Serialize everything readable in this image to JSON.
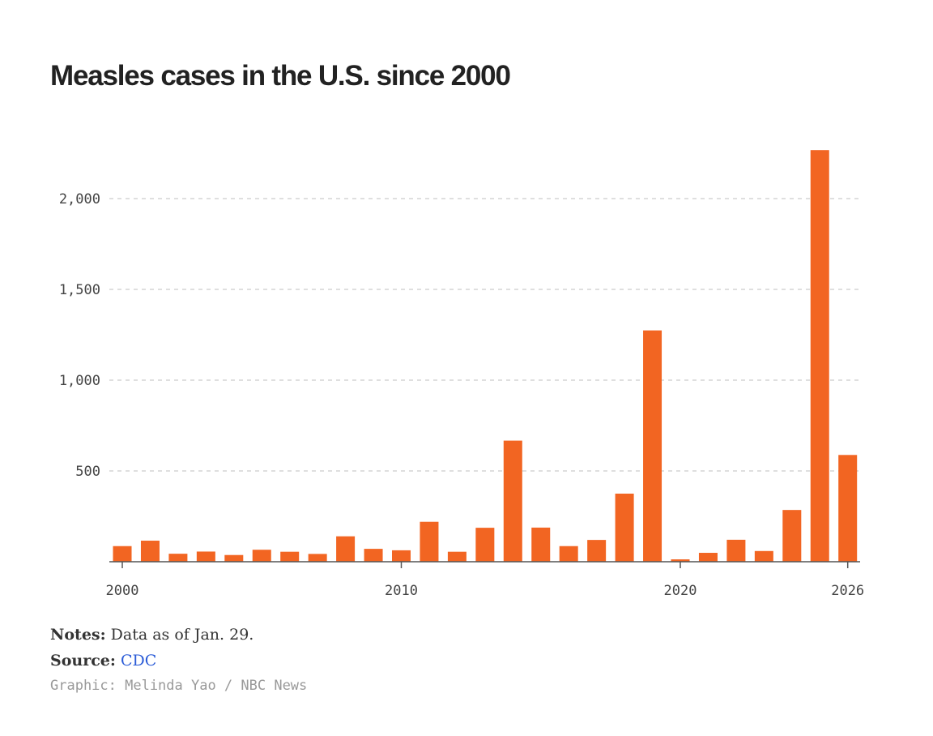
{
  "chart_data": {
    "type": "bar",
    "title": "Measles cases in the U.S. since 2000",
    "xlabel": "",
    "ylabel": "",
    "categories": [
      2000,
      2001,
      2002,
      2003,
      2004,
      2005,
      2006,
      2007,
      2008,
      2009,
      2010,
      2011,
      2012,
      2013,
      2014,
      2015,
      2016,
      2017,
      2018,
      2019,
      2020,
      2021,
      2022,
      2023,
      2024,
      2025,
      2026
    ],
    "values": [
      86,
      116,
      44,
      56,
      37,
      66,
      55,
      43,
      140,
      71,
      63,
      220,
      55,
      187,
      667,
      188,
      86,
      120,
      375,
      1274,
      13,
      49,
      121,
      59,
      285,
      2267,
      588
    ],
    "ylim": [
      0,
      2300
    ],
    "y_ticks": [
      500,
      1000,
      1500,
      2000
    ],
    "y_tick_labels": [
      "500",
      "1,000",
      "1,500",
      "2,000"
    ],
    "x_ticks": [
      2000,
      2010,
      2020,
      2026
    ],
    "x_tick_labels": [
      "2000",
      "2010",
      "2020",
      "2026"
    ],
    "grid": true,
    "bar_color": "#f26522"
  },
  "footer": {
    "notes_label": "Notes:",
    "notes_text": " Data as of Jan. 29.",
    "source_label": "Source:",
    "source_link": "CDC",
    "credit": "Graphic: Melinda Yao / NBC News"
  },
  "colors": {
    "bar": "#f26522",
    "grid": "#cccccc",
    "axis": "#555555",
    "link": "#2a5bd7"
  }
}
